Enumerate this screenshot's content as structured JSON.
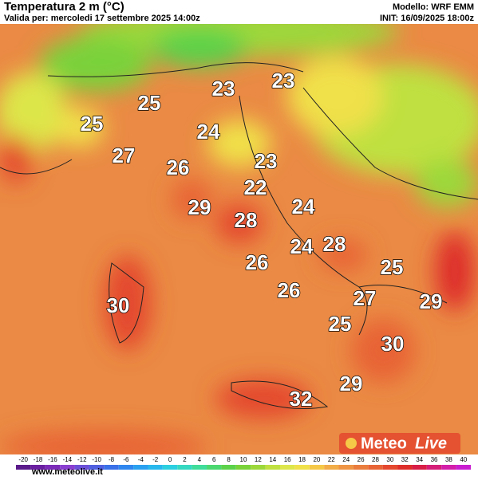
{
  "header": {
    "title": "Temperatura 2 m (°C)",
    "subtitle": "Valida per: mercoledi 17 settembre 2025 14:00z",
    "model": "Modello: WRF EMM",
    "init": "INIT: 16/09/2025 18:00z"
  },
  "map": {
    "labels": [
      23,
      23,
      25,
      25,
      24,
      27,
      26,
      23,
      22,
      29,
      28,
      24,
      24,
      28,
      26,
      25,
      26,
      30,
      27,
      29,
      25,
      30,
      29,
      32
    ]
  },
  "colorbar": {
    "ticks": [
      -20,
      -18,
      -16,
      -14,
      -12,
      -10,
      -8,
      -6,
      -4,
      -2,
      0,
      2,
      4,
      6,
      8,
      10,
      12,
      14,
      16,
      18,
      20,
      22,
      24,
      26,
      28,
      30,
      32,
      34,
      36,
      38,
      40
    ],
    "colors": [
      "#5a1a8a",
      "#6a1fa0",
      "#7b2bb8",
      "#8a3fd0",
      "#6b4fd8",
      "#4f5fe0",
      "#3a70e8",
      "#2f86ee",
      "#2aa0f0",
      "#28b8ee",
      "#2ccfe0",
      "#35d8c0",
      "#3fdc9a",
      "#4cd870",
      "#5cd24a",
      "#7ad23a",
      "#9cd83a",
      "#bfe040",
      "#dde64a",
      "#f0e04a",
      "#f6c848",
      "#f2ac48",
      "#ee9444",
      "#ea7c3e",
      "#e86436",
      "#e4482e",
      "#de2e2a",
      "#d81e46",
      "#d41e78",
      "#d21ea8",
      "#c81ed0"
    ]
  },
  "footer": {
    "url": "www.meteolive.it",
    "logo_left": "Meteo",
    "logo_right": "Live"
  }
}
